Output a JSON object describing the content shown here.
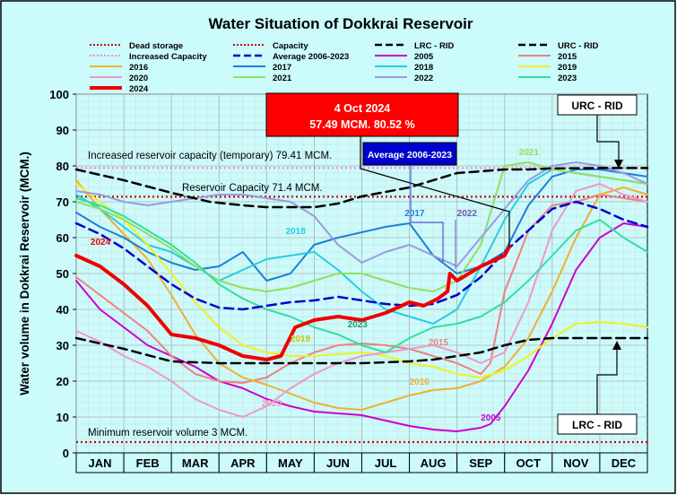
{
  "chart_data": {
    "type": "line",
    "title": "Water Situation of Dokkrai Reservoir",
    "ylabel": "Water volume in Dokkrai Reservoir (MCM.)",
    "xlabel": "",
    "ylim": [
      0,
      100
    ],
    "yticks": [
      0,
      10,
      20,
      30,
      40,
      50,
      60,
      70,
      80,
      90,
      100
    ],
    "months": [
      "JAN",
      "FEB",
      "MAR",
      "APR",
      "MAY",
      "JUN",
      "JUL",
      "AUG",
      "SEP",
      "OCT",
      "NOV",
      "DEC"
    ],
    "x_unit": "month (0 = start of JAN, 12 = end of DEC)",
    "colors": {
      "background": "#cbfbfb",
      "frame": "#000000",
      "callout_red": "#ff0000",
      "callout_blue": "#0000cc"
    },
    "legend": [
      {
        "label": "Dead storage",
        "color": "#cc0000",
        "style": "dotted",
        "width": 2
      },
      {
        "label": "Capacity",
        "color": "#cc0000",
        "style": "dotted",
        "width": 2
      },
      {
        "label": "LRC - RID",
        "color": "#000000",
        "style": "dashed",
        "width": 2.5
      },
      {
        "label": "URC - RID",
        "color": "#000000",
        "style": "dashed",
        "width": 2.5
      },
      {
        "label": "Increased Capacity",
        "color": "#ff66cc",
        "style": "dotted",
        "width": 1.5
      },
      {
        "label": "Average 2006-2023",
        "color": "#0000cc",
        "style": "dashed",
        "width": 2.5
      },
      {
        "label": "2005",
        "color": "#cc00cc",
        "style": "solid",
        "width": 2
      },
      {
        "label": "2015",
        "color": "#f08080",
        "style": "solid",
        "width": 2
      },
      {
        "label": "2016",
        "color": "#f0b030",
        "style": "solid",
        "width": 2
      },
      {
        "label": "2017",
        "color": "#1e7fd8",
        "style": "solid",
        "width": 2
      },
      {
        "label": "2018",
        "color": "#22d0e0",
        "style": "solid",
        "width": 2
      },
      {
        "label": "2019",
        "color": "#f0f020",
        "style": "solid",
        "width": 2
      },
      {
        "label": "2020",
        "color": "#f098c8",
        "style": "solid",
        "width": 2
      },
      {
        "label": "2021",
        "color": "#90e060",
        "style": "solid",
        "width": 2
      },
      {
        "label": "2022",
        "color": "#9a9ae0",
        "style": "solid",
        "width": 2
      },
      {
        "label": "2023",
        "color": "#30e0a0",
        "style": "solid",
        "width": 2
      },
      {
        "label": "2024",
        "color": "#ee0000",
        "style": "solid",
        "width": 4
      }
    ],
    "reference_lines": [
      {
        "name": "dead_storage",
        "value": 3,
        "color": "#cc0000",
        "style": "dotted"
      },
      {
        "name": "capacity",
        "value": 71.4,
        "color": "#cc0000",
        "style": "dotted"
      },
      {
        "name": "increased_capacity",
        "value": 79.41,
        "color": "#ff66cc",
        "style": "dotted"
      }
    ],
    "series": [
      {
        "name": "URC - RID",
        "color": "#000000",
        "style": "dashed",
        "width": 2.5,
        "x": [
          0,
          1,
          2,
          2.8,
          3.5,
          4,
          5,
          5.5,
          6,
          7,
          8,
          9,
          9.5,
          10,
          11,
          12
        ],
        "y": [
          79,
          76,
          72.5,
          70,
          69,
          68.5,
          68.5,
          69.5,
          71.5,
          74,
          78,
          79,
          79,
          79.3,
          79.4,
          79.4
        ]
      },
      {
        "name": "LRC - RID",
        "color": "#000000",
        "style": "dashed",
        "width": 2.5,
        "x": [
          0,
          1,
          2,
          3,
          4,
          5,
          6,
          7,
          7.5,
          8,
          8.5,
          9,
          9.5,
          10,
          10.5,
          11,
          12
        ],
        "y": [
          32,
          29,
          25.5,
          25,
          25,
          25,
          25,
          25.5,
          26,
          27,
          28,
          30,
          31.5,
          32,
          32,
          32,
          32
        ]
      },
      {
        "name": "Average 2006-2023",
        "color": "#0000cc",
        "style": "dashed",
        "width": 2.5,
        "x": [
          0,
          0.5,
          1,
          1.5,
          2,
          2.5,
          3,
          3.5,
          4,
          4.5,
          5,
          5.5,
          6,
          6.5,
          7,
          7.5,
          8,
          8.5,
          9,
          9.5,
          10,
          10.5,
          11,
          11.5,
          12
        ],
        "y": [
          64,
          61,
          57,
          52,
          47,
          43,
          40.5,
          40,
          41,
          42,
          42.5,
          43.5,
          42.5,
          41.5,
          41,
          41.5,
          44,
          49,
          56,
          62,
          68,
          70,
          68,
          65,
          63
        ]
      },
      {
        "name": "2005",
        "color": "#cc00cc",
        "style": "solid",
        "width": 2,
        "x": [
          0,
          0.5,
          1,
          1.5,
          2,
          2.5,
          3,
          3.5,
          4,
          4.5,
          5,
          5.5,
          6,
          6.5,
          7,
          7.5,
          8,
          8.5,
          8.7,
          9,
          9.5,
          10,
          10.5,
          11,
          11.5,
          12
        ],
        "y": [
          48,
          40,
          35,
          30,
          27,
          24,
          20,
          18,
          15,
          13,
          11.5,
          11,
          10.5,
          9,
          7.5,
          6.5,
          6,
          7,
          8,
          13,
          23,
          36,
          51,
          60,
          64,
          63
        ]
      },
      {
        "name": "2015",
        "color": "#f08080",
        "style": "solid",
        "width": 2,
        "x": [
          0,
          0.5,
          1,
          1.5,
          2,
          2.5,
          3,
          3.5,
          4,
          4.5,
          5,
          5.5,
          6,
          6.5,
          7,
          7.5,
          8,
          8.5,
          8.7,
          9,
          9.3,
          9.5,
          10,
          10.5,
          11,
          11.5,
          12
        ],
        "y": [
          49,
          44,
          39,
          34,
          27,
          22,
          20,
          19.5,
          21,
          25,
          28,
          30,
          30.5,
          30,
          29,
          27,
          25,
          22,
          25,
          45,
          55,
          62,
          69,
          70,
          72,
          71,
          70
        ]
      },
      {
        "name": "2016",
        "color": "#f0b030",
        "style": "solid",
        "width": 2,
        "x": [
          0,
          0.5,
          1,
          1.5,
          2,
          2.5,
          3,
          3.5,
          4,
          4.5,
          5,
          5.5,
          6,
          6.5,
          7,
          7.5,
          8,
          8.5,
          9,
          9.5,
          10,
          10.5,
          11,
          11.5,
          12
        ],
        "y": [
          76,
          68,
          61,
          54,
          44,
          33,
          25,
          21,
          19,
          16.5,
          14,
          12.5,
          12,
          14,
          16,
          17.5,
          18,
          20,
          24,
          32,
          45,
          60,
          72,
          74,
          72
        ]
      },
      {
        "name": "2017",
        "color": "#1e7fd8",
        "style": "solid",
        "width": 2,
        "x": [
          0,
          0.5,
          1,
          1.5,
          2,
          2.5,
          3,
          3.5,
          4,
          4.5,
          5,
          5.5,
          6,
          6.5,
          7,
          7.5,
          8,
          8.5,
          9,
          9.5,
          10,
          10.5,
          11,
          11.5,
          12
        ],
        "y": [
          67,
          63,
          60,
          56,
          53,
          51,
          52,
          56,
          48,
          50,
          58,
          60,
          61.5,
          63,
          64,
          55,
          50,
          52,
          56,
          69,
          77,
          79,
          79,
          78,
          77
        ]
      },
      {
        "name": "2018",
        "color": "#22d0e0",
        "style": "solid",
        "width": 2,
        "x": [
          0,
          0.5,
          1,
          1.5,
          2,
          2.5,
          3,
          3.5,
          4,
          4.5,
          5,
          5.5,
          6,
          6.5,
          7,
          7.5,
          8,
          8.5,
          9,
          9.5,
          10,
          10.5,
          11,
          11.5,
          12
        ],
        "y": [
          72,
          68,
          63,
          58,
          56,
          52,
          48,
          51,
          54,
          55,
          56,
          51,
          45,
          40,
          38,
          36,
          40,
          52,
          65,
          75,
          79,
          78,
          77,
          76,
          75
        ]
      },
      {
        "name": "2019",
        "color": "#f0f020",
        "style": "solid",
        "width": 2,
        "x": [
          0,
          0.5,
          1,
          1.5,
          2,
          2.5,
          3,
          3.5,
          4,
          4.5,
          5,
          5.5,
          6,
          6.5,
          7,
          7.5,
          8,
          8.5,
          9,
          9.5,
          10,
          10.5,
          11,
          11.5,
          12
        ],
        "y": [
          75,
          70,
          65,
          58,
          50,
          42,
          35,
          30,
          28,
          27,
          27,
          27.5,
          28,
          27,
          25,
          24,
          22,
          21,
          23,
          27,
          32,
          36,
          36.5,
          36,
          35
        ]
      },
      {
        "name": "2020",
        "color": "#f098c8",
        "style": "solid",
        "width": 2,
        "x": [
          0,
          0.5,
          1,
          1.5,
          2,
          2.5,
          3,
          3.5,
          4,
          4.5,
          5,
          5.5,
          6,
          6.5,
          7,
          7.5,
          8,
          8.5,
          9,
          9.5,
          10,
          10.5,
          11,
          11.5,
          12
        ],
        "y": [
          34,
          31,
          27,
          24,
          20,
          15,
          12,
          10,
          13,
          18,
          22,
          25,
          27,
          28,
          29,
          30,
          28,
          25,
          28,
          42,
          62,
          73,
          75,
          72,
          70
        ]
      },
      {
        "name": "2021",
        "color": "#90e060",
        "style": "solid",
        "width": 2,
        "x": [
          0,
          0.5,
          1,
          1.5,
          2,
          2.5,
          3,
          3.5,
          4,
          4.5,
          5,
          5.5,
          6,
          6.5,
          7,
          7.5,
          8,
          8.5,
          9,
          9.5,
          10,
          10.5,
          11,
          11.5,
          12
        ],
        "y": [
          70,
          68,
          65,
          61,
          57,
          52,
          48,
          46,
          45,
          46,
          48,
          50,
          50,
          48,
          46,
          45,
          48,
          58,
          80,
          81,
          79,
          78,
          77,
          76,
          75
        ]
      },
      {
        "name": "2022",
        "color": "#9a9ae0",
        "style": "solid",
        "width": 2,
        "x": [
          0,
          0.5,
          1,
          1.5,
          2,
          2.5,
          3,
          3.5,
          4,
          4.5,
          5,
          5.5,
          6,
          6.5,
          7,
          7.5,
          8,
          8.5,
          9,
          9.5,
          10,
          10.5,
          11,
          11.5,
          12
        ],
        "y": [
          73,
          72,
          70,
          69,
          70,
          71,
          72,
          72,
          71,
          70,
          66,
          58,
          53,
          56,
          58,
          55,
          52,
          60,
          68,
          76,
          80,
          81,
          80,
          78,
          75
        ]
      },
      {
        "name": "2023",
        "color": "#30e0a0",
        "style": "solid",
        "width": 2,
        "x": [
          0,
          0.5,
          1,
          1.5,
          2,
          2.5,
          3,
          3.5,
          4,
          4.5,
          5,
          5.5,
          6,
          6.5,
          7,
          7.5,
          8,
          8.5,
          9,
          9.5,
          10,
          10.5,
          11,
          11.5,
          12
        ],
        "y": [
          71,
          69,
          66,
          62,
          58,
          53,
          47,
          43,
          40,
          38,
          35,
          33,
          30,
          28,
          32,
          35,
          36,
          38,
          42,
          48,
          55,
          62,
          65,
          60,
          56
        ]
      },
      {
        "name": "2024",
        "color": "#ee0000",
        "style": "solid",
        "width": 4,
        "x": [
          0,
          0.5,
          1,
          1.5,
          2,
          2.5,
          3,
          3.5,
          4,
          4.3,
          4.6,
          5,
          5.5,
          6,
          6.5,
          7,
          7.3,
          7.6,
          7.8,
          7.85,
          8,
          8.5,
          9,
          9.1
        ],
        "y": [
          55,
          52,
          47,
          41,
          33,
          32,
          30,
          27,
          26,
          27,
          35,
          37,
          38,
          37,
          39,
          42,
          41,
          43,
          45,
          50,
          48,
          52,
          55,
          57.49
        ]
      }
    ],
    "inline_labels": [
      {
        "text": "2024",
        "x": 0.3,
        "y": 58,
        "color": "#ee0000"
      },
      {
        "text": "2018",
        "x": 4.4,
        "y": 61,
        "color": "#22d0e0"
      },
      {
        "text": "2017",
        "x": 6.9,
        "y": 66,
        "color": "#1e7fd8"
      },
      {
        "text": "2022",
        "x": 8.0,
        "y": 66,
        "color": "#7a52b0"
      },
      {
        "text": "2021",
        "x": 9.3,
        "y": 83,
        "color": "#90e060"
      },
      {
        "text": "2019",
        "x": 4.5,
        "y": 31,
        "color": "#c8c800"
      },
      {
        "text": "2023",
        "x": 5.7,
        "y": 35,
        "color": "#20a070"
      },
      {
        "text": "2015",
        "x": 7.4,
        "y": 30,
        "color": "#f08080"
      },
      {
        "text": "2016",
        "x": 7.0,
        "y": 19,
        "color": "#f0b030"
      },
      {
        "text": "2020",
        "x": 3.9,
        "y": 13,
        "color": "#f098c8"
      },
      {
        "text": "2005",
        "x": 8.5,
        "y": 9,
        "color": "#cc00cc"
      }
    ],
    "annotations": {
      "increased_capacity_text": "Increased reservoir capacity (temporary) 79.41 MCM.",
      "capacity_text": "Reservoir Capacity 71.4 MCM.",
      "minimum_text": "Minimum reservoir volume 3 MCM.",
      "callout_date": "4 Oct 2024",
      "callout_value": "57.49 MCM. 80.52 %",
      "average_box": "Average 2006-2023",
      "urc_box": "URC - RID",
      "lrc_box": "LRC - RID"
    }
  }
}
